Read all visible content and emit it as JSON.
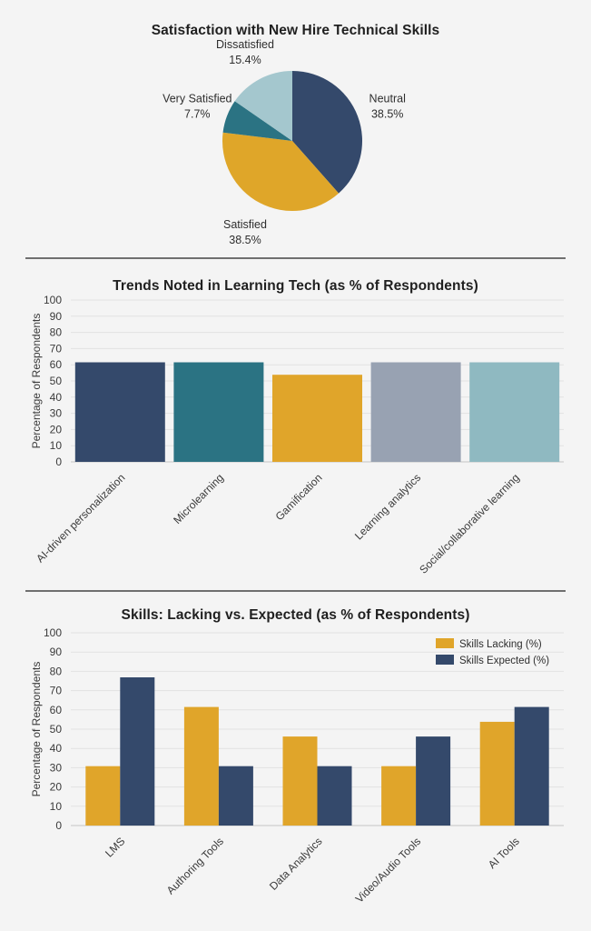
{
  "page": {
    "background_color": "#f4f4f4",
    "divider_color": "#6f6f6f"
  },
  "chart_data": [
    {
      "type": "pie",
      "title": "Satisfaction with New Hire Technical Skills",
      "start_angle": "top",
      "direction": "clockwise",
      "labels_position": "outside",
      "slices": [
        {
          "label": "Neutral",
          "value": 38.5,
          "color": "#34496b"
        },
        {
          "label": "Satisfied",
          "value": 38.5,
          "color": "#dfa629"
        },
        {
          "label": "Very Satisfied",
          "value": 7.7,
          "color": "#2b7383"
        },
        {
          "label": "Dissatisfied",
          "value": 15.4,
          "color": "#a4c7ce"
        }
      ]
    },
    {
      "type": "bar",
      "title": "Trends Noted in Learning Tech (as % of Respondents)",
      "ylabel": "Percentage of Respondents",
      "ylim": [
        0,
        100
      ],
      "ytick_step": 10,
      "grid": true,
      "xtick_rotation_deg": 45,
      "categories": [
        "AI-driven personalization",
        "Microlearning",
        "Gamification",
        "Learning analytics",
        "Social/collaborative learning"
      ],
      "values": [
        61.5,
        61.5,
        53.8,
        61.5,
        61.5
      ],
      "bar_colors": [
        "#34496b",
        "#2b7383",
        "#e0a52a",
        "#98a2b2",
        "#8fb9c1"
      ]
    },
    {
      "type": "bar",
      "title": "Skills: Lacking vs. Expected (as % of Respondents)",
      "ylabel": "Percentage of Respondents",
      "ylim": [
        0,
        100
      ],
      "ytick_step": 10,
      "grid": true,
      "legend_position": "upper right",
      "xtick_rotation_deg": 45,
      "categories": [
        "LMS",
        "Authoring Tools",
        "Data Analytics",
        "Video/Audio Tools",
        "AI Tools"
      ],
      "series": [
        {
          "name": "Skills Lacking (%)",
          "color": "#e0a52a",
          "values": [
            30.8,
            61.5,
            46.2,
            30.8,
            53.8
          ]
        },
        {
          "name": "Skills Expected (%)",
          "color": "#34496b",
          "values": [
            76.9,
            30.8,
            30.8,
            46.2,
            61.5
          ]
        }
      ]
    }
  ]
}
